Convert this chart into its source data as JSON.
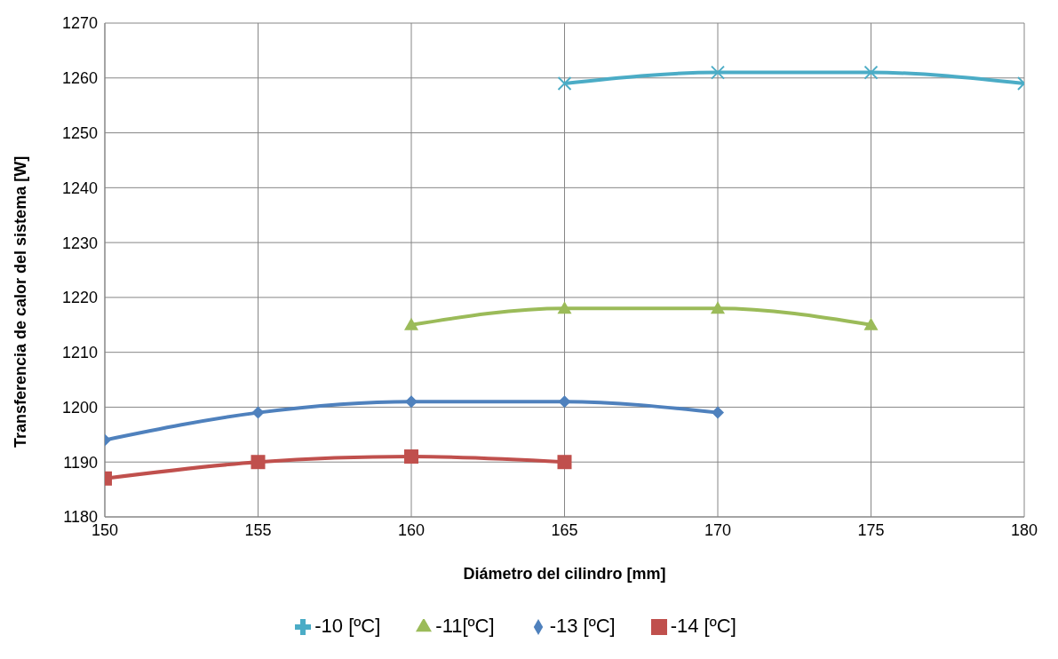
{
  "chart_data": {
    "type": "line",
    "xlabel": "Diámetro  del cilindro [mm]",
    "ylabel": "Transferencia de calor del sistema [W]",
    "xlim": [
      150,
      180
    ],
    "xticks": [
      150,
      155,
      160,
      165,
      170,
      175,
      180
    ],
    "ylim": [
      1180,
      1270
    ],
    "yticks": [
      1180,
      1190,
      1200,
      1210,
      1220,
      1230,
      1240,
      1250,
      1260,
      1270
    ],
    "grid": true,
    "legend": "bottom",
    "line_style": "solid",
    "series": [
      {
        "name": "-10 [ºC]",
        "color": "#4bacc6",
        "marker": "cross",
        "x": [
          165,
          170,
          175,
          180
        ],
        "values": [
          1259,
          1261,
          1261,
          1259
        ]
      },
      {
        "name": "-11[ºC]",
        "color": "#9bbb59",
        "marker": "triangle",
        "x": [
          160,
          165,
          170,
          175
        ],
        "values": [
          1215,
          1218,
          1218,
          1215
        ]
      },
      {
        "name": "-13 [ºC]",
        "color": "#4f81bd",
        "marker": "diamond",
        "x": [
          150,
          155,
          160,
          165,
          170
        ],
        "values": [
          1194,
          1199,
          1201,
          1201,
          1199
        ]
      },
      {
        "name": "-14 [ºC]",
        "color": "#c0504d",
        "marker": "square",
        "x": [
          150,
          155,
          160,
          165
        ],
        "values": [
          1187,
          1190,
          1191,
          1190
        ]
      }
    ]
  }
}
